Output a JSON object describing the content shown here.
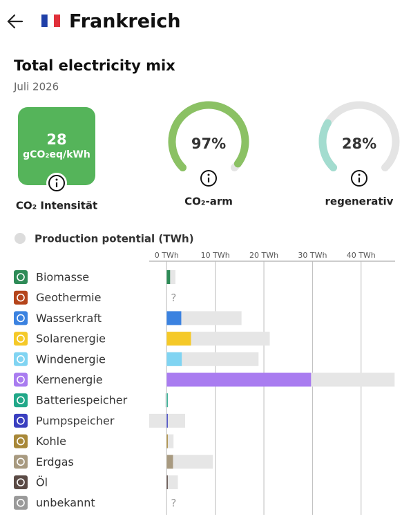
{
  "header": {
    "title": "Frankreich"
  },
  "summary": {
    "title": "Total electricity mix",
    "date": "Juli 2026",
    "intensity": {
      "value": 28,
      "unit": "gCO₂eq/kWh",
      "label": "CO₂ Intensität",
      "color": "#55b45a"
    },
    "gauges": [
      {
        "value": 97,
        "value_label": "97%",
        "label": "CO₂-arm",
        "color": "#8bc164",
        "lim": [
          0,
          100
        ]
      },
      {
        "value": 28,
        "value_label": "28%",
        "label": "regenerativ",
        "color": "#a3dccf",
        "lim": [
          0,
          100
        ]
      }
    ]
  },
  "chart_data": {
    "type": "bar",
    "categories": [
      "Biomasse",
      "Geothermie",
      "Wasserkraft",
      "Solarenergie",
      "Windenergie",
      "Kernenergie",
      "Batteriespeicher",
      "Pumpspeicher",
      "Kohle",
      "Erdgas",
      "Öl",
      "unbekannt"
    ],
    "colors": [
      "#2e8b57",
      "#b5451b",
      "#3b82e0",
      "#f5c928",
      "#80d4f2",
      "#a97cf0",
      "#22a889",
      "#3a3fc0",
      "#a88838",
      "#a89a80",
      "#5a4a45",
      "#9a9a9a"
    ],
    "values": [
      0.7,
      null,
      3.0,
      5.0,
      3.1,
      29.7,
      0,
      0.1,
      0,
      1.3,
      0.1,
      null
    ],
    "potential": {
      "name": "Production potential (TWh)",
      "color": "#e6e6e6",
      "low": [
        0,
        null,
        0,
        0,
        0,
        0,
        -0.3,
        -3.6,
        0,
        0,
        0,
        null
      ],
      "high": [
        1.8,
        null,
        15.4,
        21.2,
        18.9,
        46.9,
        0.3,
        3.8,
        1.4,
        9.5,
        2.3,
        null
      ]
    },
    "unknown_label": "?",
    "xlim": [
      -3.6,
      47
    ],
    "xticks": [
      {
        "value": 0,
        "label": "0 TWh"
      },
      {
        "value": 10,
        "label": "10 TWh"
      },
      {
        "value": 20,
        "label": "20 TWh"
      },
      {
        "value": 30,
        "label": "30 TWh"
      },
      {
        "value": 40,
        "label": "40 TWh"
      }
    ],
    "grid": true
  }
}
